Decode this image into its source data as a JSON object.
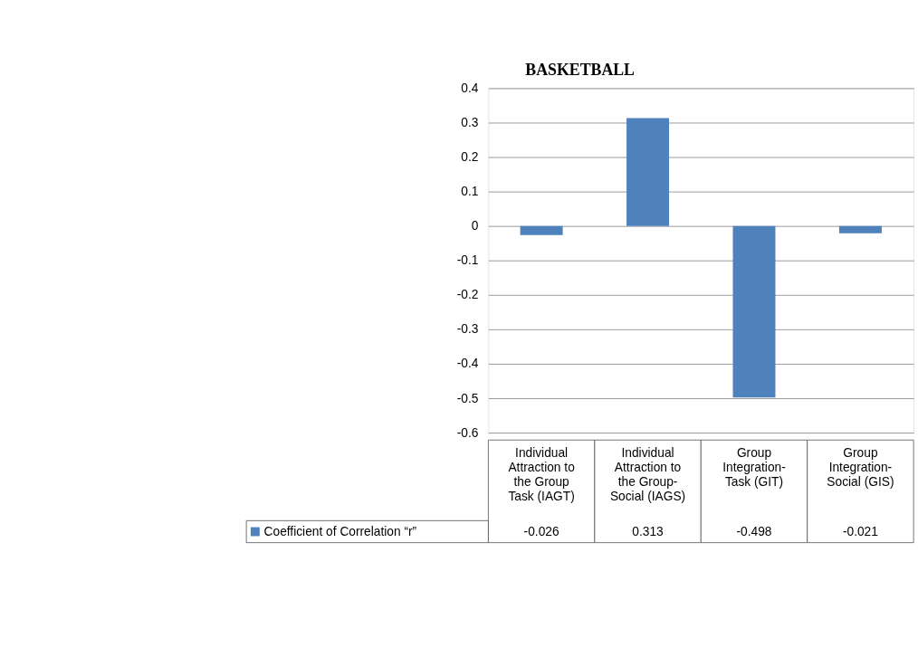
{
  "chart_data": {
    "type": "bar",
    "title": "BASKETBALL",
    "categories": [
      "Individual Attraction to the Group Task (IAGT)",
      "Individual Attraction to the Group- Social (IAGS)",
      "Group Integration-Task (GIT)",
      "Group Integration-Social (GIS)"
    ],
    "series": [
      {
        "name": "Coefficient of Correlation “r”",
        "color": "#4f81bd",
        "values": [
          -0.026,
          0.313,
          -0.498,
          -0.021
        ]
      }
    ],
    "ylim": [
      -0.6,
      0.4
    ],
    "yticks": [
      -0.6,
      -0.5,
      -0.4,
      -0.3,
      -0.2,
      -0.1,
      0,
      0.1,
      0.2,
      0.3,
      0.4
    ],
    "grid": "y",
    "legend": "bottom",
    "data_labels": true
  }
}
